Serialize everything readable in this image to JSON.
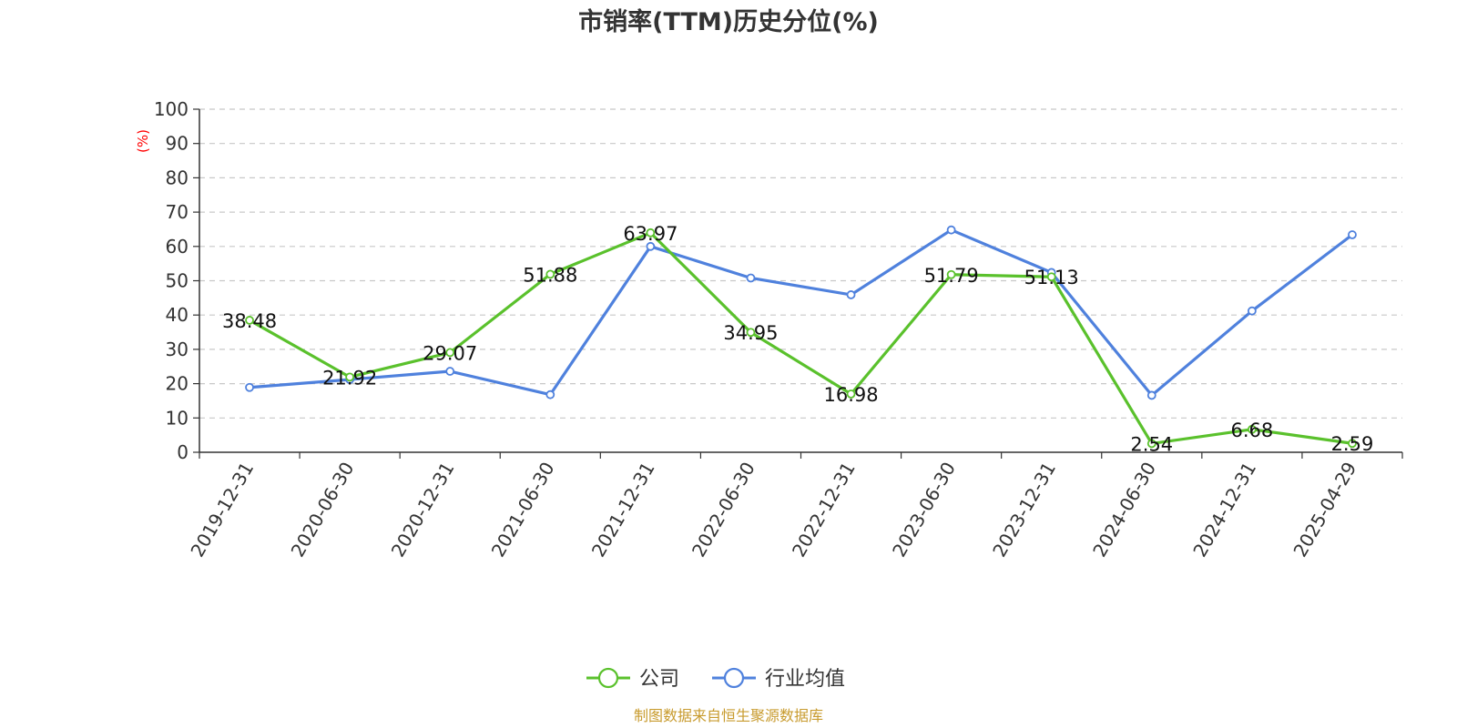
{
  "chart_data": {
    "type": "line",
    "title": "市销率(TTM)历史分位(%)",
    "ylabel": "(%)",
    "ylim": [
      0,
      100
    ],
    "yticks": [
      0,
      10,
      20,
      30,
      40,
      50,
      60,
      70,
      80,
      90,
      100
    ],
    "grid": true,
    "legend_position": "bottom",
    "categories": [
      "2019-12-31",
      "2020-06-30",
      "2020-12-31",
      "2021-06-30",
      "2021-12-31",
      "2022-06-30",
      "2022-12-31",
      "2023-06-30",
      "2023-12-31",
      "2024-06-30",
      "2024-12-31",
      "2025-04-29"
    ],
    "series": [
      {
        "name": "公司",
        "color": "#5ac12c",
        "values": [
          38.48,
          21.92,
          29.07,
          51.88,
          63.97,
          34.95,
          16.98,
          51.79,
          51.13,
          2.54,
          6.68,
          2.59
        ],
        "labels": [
          "38.48",
          "21.92",
          "29.07",
          "51.88",
          "63.97",
          "34.95",
          "16.98",
          "51.79",
          "51.13",
          "2.54",
          "6.68",
          "2.59"
        ]
      },
      {
        "name": "行业均值",
        "color": "#4f81dd",
        "values": [
          18.9,
          21.2,
          23.6,
          16.8,
          60.0,
          50.8,
          45.9,
          64.8,
          52.4,
          16.6,
          41.2,
          63.4
        ]
      }
    ],
    "source": "制图数据来自恒生聚源数据库",
    "ylabel_color": "#ff0000",
    "source_color": "#c89b2e"
  }
}
